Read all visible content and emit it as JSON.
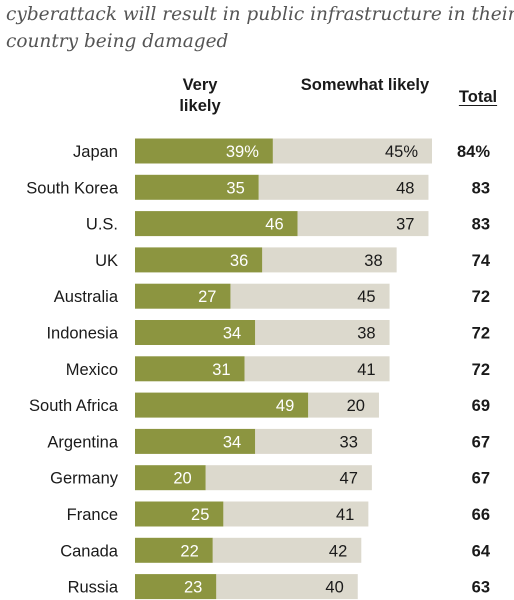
{
  "title_lines": [
    "cyberattack will result in public infrastructure in their",
    "country being damaged"
  ],
  "headers": {
    "very_likely": "Very likely",
    "somewhat_likely": "Somewhat likely",
    "total": "Total"
  },
  "colors": {
    "very_likely": "#8c9540",
    "somewhat_likely": "#dcd9cd"
  },
  "chart_data": {
    "type": "bar",
    "orientation": "horizontal",
    "stacked": true,
    "categories": [
      "Japan",
      "South Korea",
      "U.S.",
      "UK",
      "Australia",
      "Indonesia",
      "Mexico",
      "South Africa",
      "Argentina",
      "Germany",
      "France",
      "Canada",
      "Russia"
    ],
    "series": [
      {
        "name": "Very likely",
        "values": [
          39,
          35,
          46,
          36,
          27,
          34,
          31,
          49,
          34,
          20,
          25,
          22,
          23
        ]
      },
      {
        "name": "Somewhat likely",
        "values": [
          45,
          48,
          37,
          38,
          45,
          38,
          41,
          20,
          33,
          47,
          41,
          42,
          40
        ]
      }
    ],
    "totals": [
      84,
      83,
      83,
      74,
      72,
      72,
      72,
      69,
      67,
      67,
      66,
      64,
      63
    ],
    "very_labels": [
      "39%",
      "35",
      "46",
      "36",
      "27",
      "34",
      "31",
      "49",
      "34",
      "20",
      "25",
      "22",
      "23"
    ],
    "somewhat_labels": [
      "45%",
      "48",
      "37",
      "38",
      "45",
      "38",
      "41",
      "20",
      "33",
      "47",
      "41",
      "42",
      "40"
    ],
    "total_labels": [
      "84%",
      "83",
      "83",
      "74",
      "72",
      "72",
      "72",
      "69",
      "67",
      "67",
      "66",
      "64",
      "63"
    ],
    "xlim": [
      0,
      84
    ]
  }
}
